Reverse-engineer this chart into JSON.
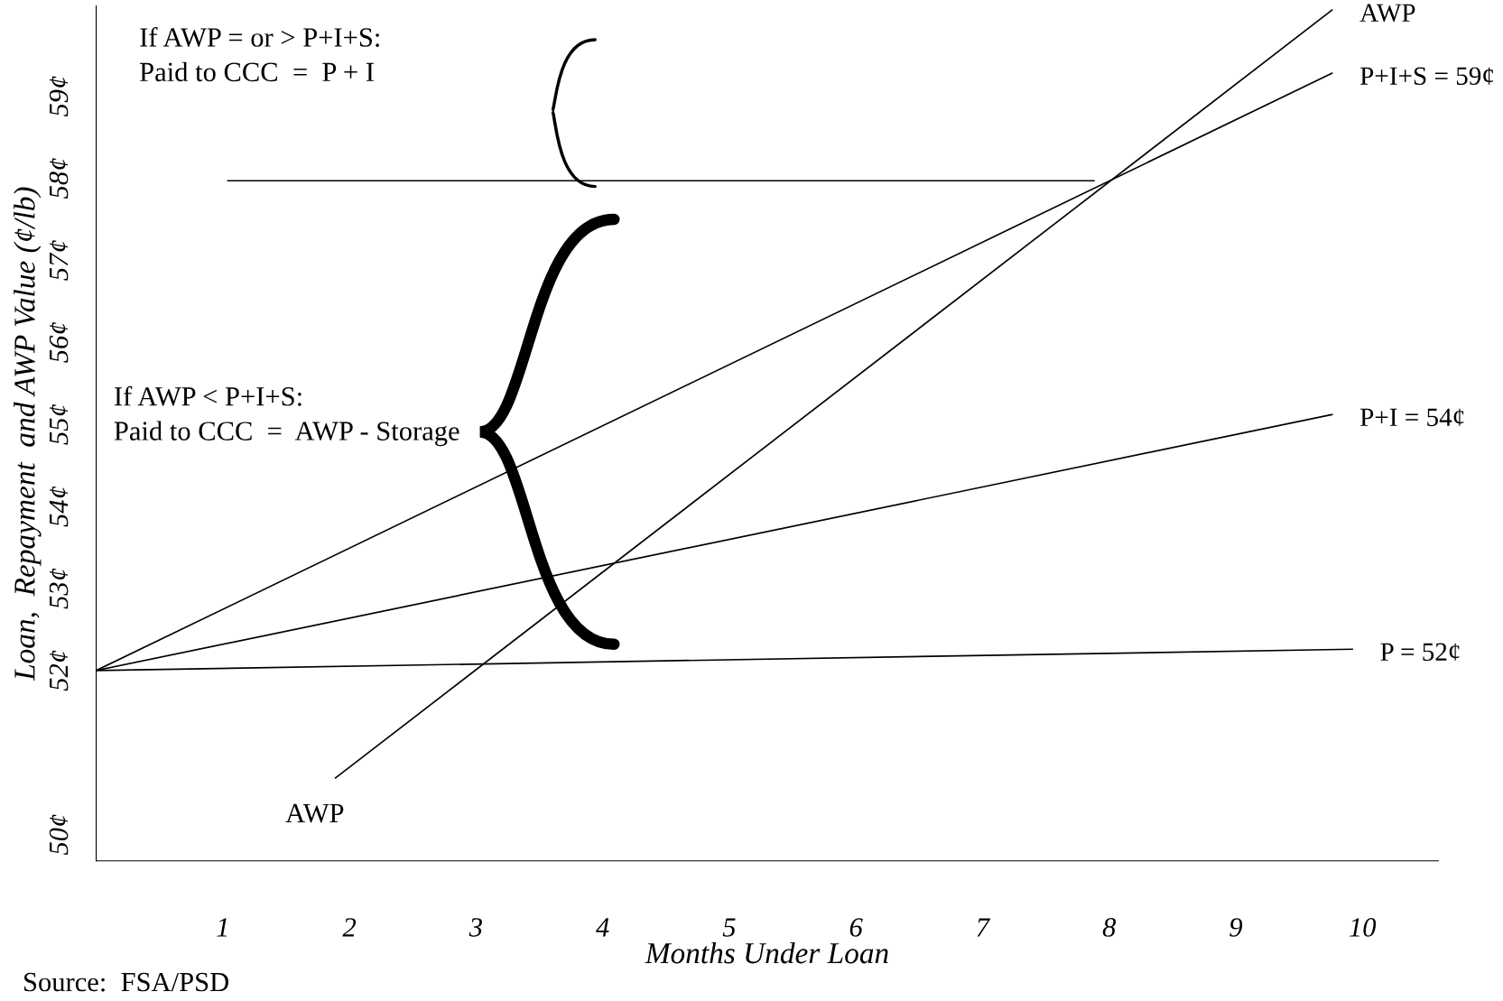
{
  "chart_data": {
    "type": "line",
    "xlabel": "Months Under Loan",
    "ylabel": "Loan,  Repayment  and AWP Value (¢/lb)",
    "xlim": [
      0,
      10.6
    ],
    "xticks": [
      1,
      2,
      3,
      4,
      5,
      6,
      7,
      8,
      9,
      10
    ],
    "ylim": [
      49.68,
      60.1
    ],
    "yticks": [
      {
        "value": 50,
        "label": "50¢"
      },
      {
        "value": 52,
        "label": "52¢"
      },
      {
        "value": 53,
        "label": "53¢"
      },
      {
        "value": 54,
        "label": "54¢"
      },
      {
        "value": 55,
        "label": "55¢"
      },
      {
        "value": 56,
        "label": "56¢"
      },
      {
        "value": 57,
        "label": "57¢"
      },
      {
        "value": 58,
        "label": "58¢"
      },
      {
        "value": 59,
        "label": "59¢"
      }
    ],
    "grid": false,
    "legend": false,
    "marker": "none",
    "line_style": "solid",
    "series": [
      {
        "name": "P = 52¢",
        "color": "#000000",
        "x": [
          0,
          9.92
        ],
        "values": [
          52,
          52.26
        ]
      },
      {
        "name": "P+I = 54¢",
        "color": "#000000",
        "x": [
          0,
          9.76
        ],
        "values": [
          52,
          55.12
        ]
      },
      {
        "name": "P+I+S = 59¢",
        "color": "#000000",
        "x": [
          0,
          9.76
        ],
        "values": [
          52,
          59.28
        ]
      },
      {
        "name": "AWP",
        "color": "#000000",
        "x": [
          1.89,
          9.76
        ],
        "values": [
          50.69,
          60.05
        ]
      },
      {
        "color": "#000000",
        "x": [
          1.04,
          7.88
        ],
        "values": [
          57.97,
          57.97
        ]
      }
    ],
    "annotations": [
      {
        "text": "AWP",
        "x": 1.89,
        "y": 50.69
      },
      "If AWP = or > P+I+S:\nPaid to CCC  =  P + I",
      "If AWP < P+I+S:\nPaid to CCC  =  AWP - Storage",
      "Source:  FSA/PSD"
    ]
  }
}
